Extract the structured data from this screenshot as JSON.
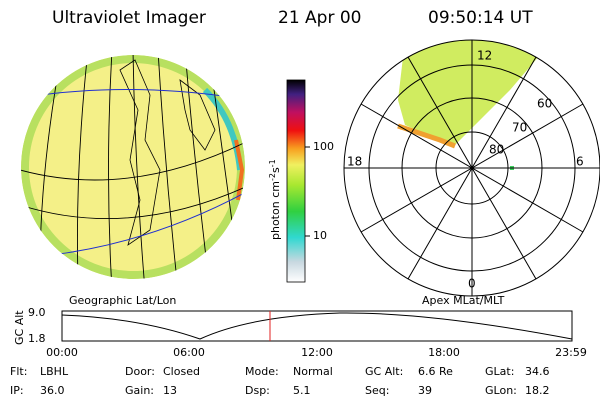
{
  "header": {
    "title": "Ultraviolet Imager",
    "date": "21 Apr 00",
    "time": "09:50:14 UT"
  },
  "colorbar": {
    "label_base": "photon cm",
    "label_exp1": "-2",
    "label_mid": "s",
    "label_exp2": "-1",
    "ticks": [
      "100",
      "10"
    ]
  },
  "polar": {
    "mlt_labels": [
      "12",
      "18",
      "6",
      "0"
    ],
    "lat_labels": [
      "60",
      "70",
      "80"
    ]
  },
  "alt_plot": {
    "left_title": "Geographic Lat/Lon",
    "right_title": "Apex MLat/MLT",
    "y_label": "GC Alt",
    "yticks": [
      "9.0",
      "1.8"
    ],
    "xticks": [
      "00:00",
      "06:00",
      "12:00",
      "18:00",
      "23:59"
    ]
  },
  "footer": {
    "rows": [
      [
        [
          "Flt:",
          "LBHL"
        ],
        [
          "Door:",
          "Closed"
        ],
        [
          "Mode:",
          "Normal"
        ],
        [
          "GC Alt:",
          "6.6 Re"
        ],
        [
          "GLat:",
          "34.6"
        ]
      ],
      [
        [
          "IP:",
          "36.0"
        ],
        [
          "Gain:",
          "13"
        ],
        [
          "Dsp:",
          "5.1"
        ],
        [
          "Seq:",
          "39"
        ],
        [
          "GLon:",
          "18.2"
        ]
      ]
    ]
  }
}
